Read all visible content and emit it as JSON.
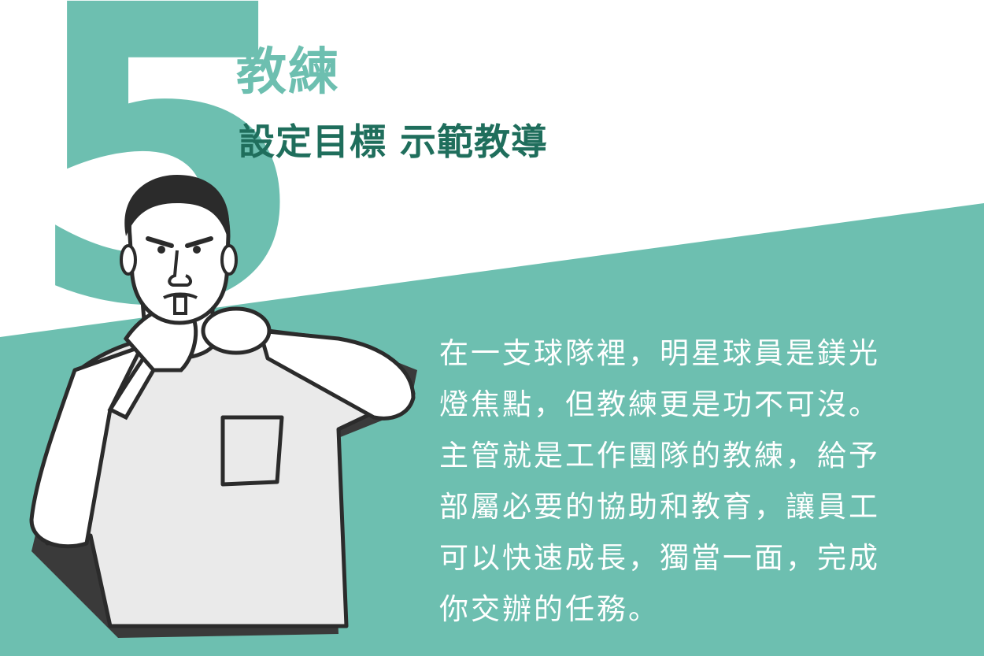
{
  "heading": {
    "number": "5",
    "title": "教練",
    "subtitle": "設定目標 示範教導"
  },
  "body": {
    "lines": [
      "在一支球隊裡，明星球員是鎂光",
      "燈焦點，但教練更是功不可沒。",
      "主管就是工作團隊的教練，給予",
      "部屬必要的協助和教育，讓員工",
      "可以快速成長，獨當一面，完成",
      "你交辦的任務。"
    ]
  },
  "colors": {
    "teal": "#6dbfb0",
    "dark_green": "#1f6e5c",
    "text_white": "#ffffff",
    "outline": "#2b2b2b",
    "shirt": "#eaeaea"
  },
  "illustration": "man-blowing-whistle"
}
